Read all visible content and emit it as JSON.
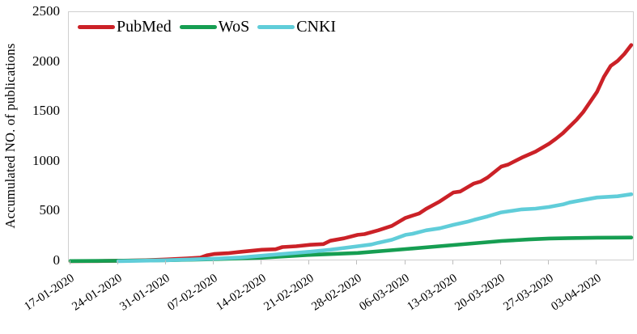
{
  "figure": {
    "y_axis_title": "Accumulated NO. of publications"
  },
  "chart_data": {
    "type": "line",
    "title": "",
    "xlabel": "",
    "ylabel": "Accumulated NO. of publications",
    "ylim": [
      0,
      2500
    ],
    "y_ticks": [
      0,
      500,
      1000,
      1500,
      2000,
      2500
    ],
    "x_tick_labels": [
      "17-01-2020",
      "24-01-2020",
      "31-01-2020",
      "07-02-2020",
      "14-02-2020",
      "21-02-2020",
      "28-02-2020",
      "06-03-2020",
      "13-03-2020",
      "20-03-2020",
      "27-03-2020",
      "03-04-2020"
    ],
    "x_tick_day_indices": [
      0,
      7,
      14,
      21,
      28,
      35,
      42,
      49,
      56,
      63,
      70,
      77
    ],
    "x_tick_rotation_deg": -33,
    "grid": false,
    "legend_position": "top-left inside plot",
    "axis_color": "#cfcfcf",
    "tick_color": "#bdbdbd",
    "text_color": "#000000",
    "line_width": 4.6,
    "series": [
      {
        "name": "PubMed",
        "color": "#cb2127",
        "points": [
          [
            0,
            0
          ],
          [
            4,
            2
          ],
          [
            7,
            5
          ],
          [
            11,
            10
          ],
          [
            14,
            18
          ],
          [
            17,
            28
          ],
          [
            19,
            36
          ],
          [
            20,
            60
          ],
          [
            21,
            72
          ],
          [
            23,
            80
          ],
          [
            25,
            95
          ],
          [
            28,
            115
          ],
          [
            30,
            120
          ],
          [
            31,
            142
          ],
          [
            33,
            150
          ],
          [
            35,
            165
          ],
          [
            37,
            172
          ],
          [
            38,
            205
          ],
          [
            40,
            230
          ],
          [
            42,
            265
          ],
          [
            43,
            272
          ],
          [
            45,
            310
          ],
          [
            47,
            355
          ],
          [
            49,
            435
          ],
          [
            51,
            480
          ],
          [
            52,
            525
          ],
          [
            54,
            600
          ],
          [
            56,
            690
          ],
          [
            57,
            700
          ],
          [
            59,
            780
          ],
          [
            60,
            800
          ],
          [
            61,
            840
          ],
          [
            63,
            950
          ],
          [
            64,
            970
          ],
          [
            66,
            1040
          ],
          [
            68,
            1100
          ],
          [
            70,
            1180
          ],
          [
            71,
            1230
          ],
          [
            72,
            1285
          ],
          [
            74,
            1420
          ],
          [
            75,
            1500
          ],
          [
            77,
            1700
          ],
          [
            78,
            1850
          ],
          [
            79,
            1960
          ],
          [
            80,
            2010
          ],
          [
            81,
            2080
          ],
          [
            82,
            2170
          ]
        ]
      },
      {
        "name": "WoS",
        "color": "#169e52",
        "points": [
          [
            0,
            2
          ],
          [
            7,
            5
          ],
          [
            14,
            10
          ],
          [
            21,
            20
          ],
          [
            28,
            35
          ],
          [
            35,
            63
          ],
          [
            42,
            83
          ],
          [
            49,
            122
          ],
          [
            56,
            162
          ],
          [
            63,
            203
          ],
          [
            67,
            218
          ],
          [
            70,
            228
          ],
          [
            73,
            232
          ],
          [
            77,
            236
          ],
          [
            82,
            238
          ]
        ]
      },
      {
        "name": "CNKI",
        "color": "#60cdd9",
        "points": [
          [
            7,
            0
          ],
          [
            14,
            10
          ],
          [
            21,
            25
          ],
          [
            25,
            38
          ],
          [
            28,
            55
          ],
          [
            31,
            72
          ],
          [
            35,
            95
          ],
          [
            38,
            115
          ],
          [
            42,
            150
          ],
          [
            44,
            168
          ],
          [
            45,
            185
          ],
          [
            47,
            215
          ],
          [
            49,
            265
          ],
          [
            50,
            275
          ],
          [
            52,
            310
          ],
          [
            54,
            330
          ],
          [
            56,
            365
          ],
          [
            58,
            395
          ],
          [
            59,
            415
          ],
          [
            61,
            450
          ],
          [
            63,
            490
          ],
          [
            64,
            500
          ],
          [
            66,
            520
          ],
          [
            68,
            528
          ],
          [
            70,
            545
          ],
          [
            72,
            570
          ],
          [
            73,
            590
          ],
          [
            75,
            615
          ],
          [
            77,
            640
          ],
          [
            79,
            648
          ],
          [
            80,
            652
          ],
          [
            82,
            672
          ]
        ]
      }
    ],
    "final_values": {
      "PubMed": 2170,
      "CNKI": 672,
      "WoS": 238
    }
  }
}
